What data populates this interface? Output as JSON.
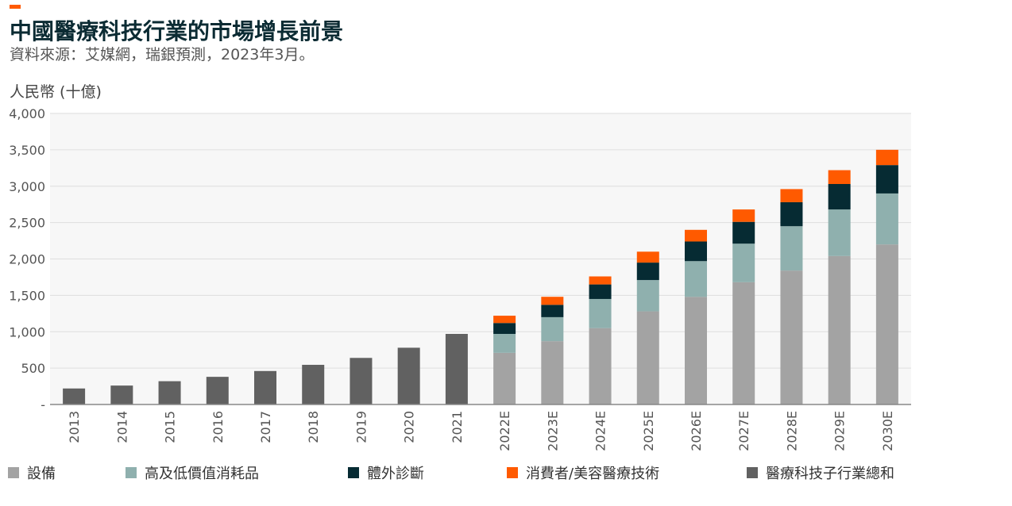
{
  "header": {
    "title": "中國醫療科技行業的市場增長前景",
    "subtitle": "資料來源：艾媒網，瑞銀預測，2023年3月。",
    "unit_label": "人民幣 (十億)"
  },
  "colors": {
    "equipment": "#a3a3a3",
    "consumables": "#8fb0ae",
    "ivd": "#062b33",
    "consumer": "#ff5a00",
    "total": "#616161",
    "accent": "#ff5a00",
    "title": "#0b2b33"
  },
  "legend": [
    {
      "key": "equipment",
      "label": "設備"
    },
    {
      "key": "consumables",
      "label": "高及低價值消耗品"
    },
    {
      "key": "ivd",
      "label": "體外診斷"
    },
    {
      "key": "consumer",
      "label": "消費者/美容醫療技術"
    },
    {
      "key": "total",
      "label": "醫療科技子行業總和"
    }
  ],
  "chart_data": {
    "type": "bar",
    "stacked": true,
    "categories": [
      "2013",
      "2014",
      "2015",
      "2016",
      "2017",
      "2018",
      "2019",
      "2020",
      "2021",
      "2022E",
      "2023E",
      "2024E",
      "2025E",
      "2026E",
      "2027E",
      "2028E",
      "2029E",
      "2030E"
    ],
    "ylabel": "人民幣 (十億)",
    "ylim": [
      0,
      4000
    ],
    "yticks": [
      0,
      500,
      1000,
      1500,
      2000,
      2500,
      3000,
      3500,
      4000
    ],
    "ytick_labels": [
      "-",
      "500",
      "1,000",
      "1,500",
      "2,000",
      "2,500",
      "3,000",
      "3,500",
      "4,000"
    ],
    "grid": true,
    "legend_position": "bottom",
    "series": [
      {
        "name": "設備",
        "key": "equipment",
        "values": [
          null,
          null,
          null,
          null,
          null,
          null,
          null,
          null,
          null,
          710,
          870,
          1050,
          1280,
          1480,
          1680,
          1840,
          2040,
          2200
        ]
      },
      {
        "name": "高及低價值消耗品",
        "key": "consumables",
        "values": [
          null,
          null,
          null,
          null,
          null,
          null,
          null,
          null,
          null,
          260,
          330,
          400,
          430,
          490,
          530,
          610,
          640,
          700
        ]
      },
      {
        "name": "體外診斷",
        "key": "ivd",
        "values": [
          null,
          null,
          null,
          null,
          null,
          null,
          null,
          null,
          null,
          150,
          170,
          200,
          240,
          270,
          300,
          330,
          350,
          390
        ]
      },
      {
        "name": "消費者/美容醫療技術",
        "key": "consumer",
        "values": [
          null,
          null,
          null,
          null,
          null,
          null,
          null,
          null,
          null,
          100,
          110,
          110,
          150,
          160,
          170,
          180,
          190,
          210
        ]
      },
      {
        "name": "醫療科技子行業總和",
        "key": "total",
        "values": [
          220,
          260,
          320,
          380,
          460,
          545,
          640,
          780,
          970,
          null,
          null,
          null,
          null,
          null,
          null,
          null,
          null,
          null
        ]
      }
    ]
  }
}
